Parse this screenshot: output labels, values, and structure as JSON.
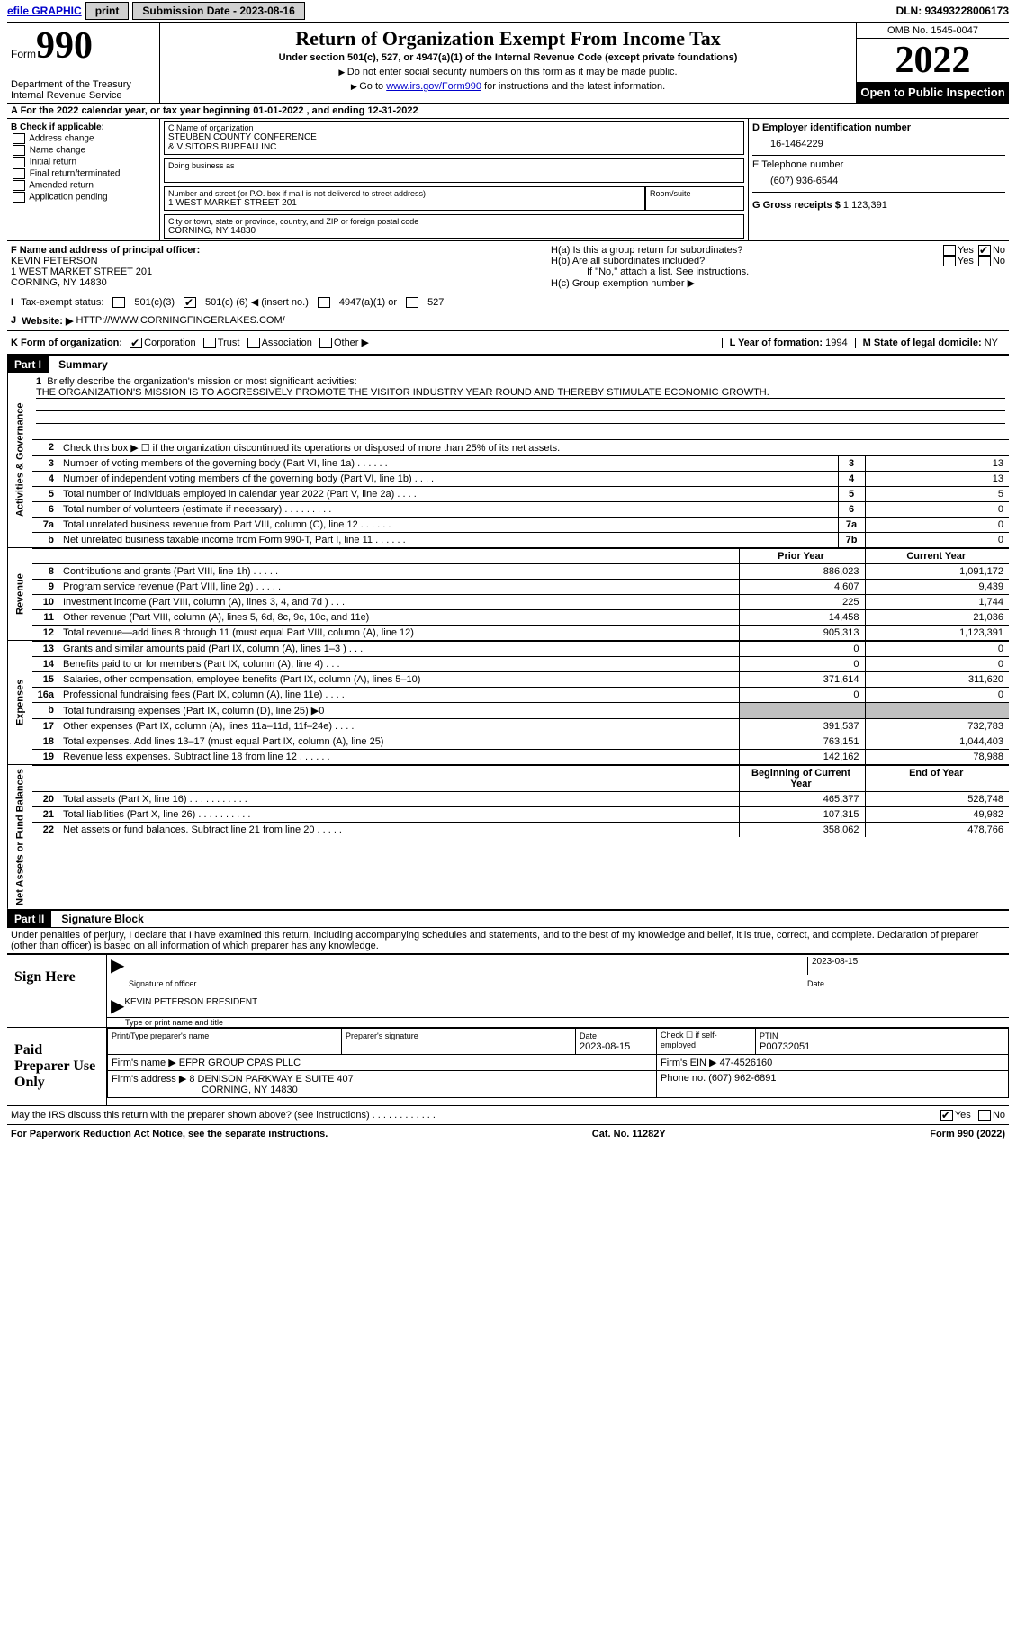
{
  "topbar": {
    "efile": "efile GRAPHIC",
    "print": "print",
    "submission_label": "Submission Date - 2023-08-16",
    "dln_label": "DLN: 93493228006173"
  },
  "header": {
    "form_label": "Form",
    "form_num": "990",
    "dept": "Department of the Treasury Internal Revenue Service",
    "title": "Return of Organization Exempt From Income Tax",
    "subtitle": "Under section 501(c), 527, or 4947(a)(1) of the Internal Revenue Code (except private foundations)",
    "note1": "Do not enter social security numbers on this form as it may be made public.",
    "note2_pre": "Go to ",
    "note2_link": "www.irs.gov/Form990",
    "note2_post": " for instructions and the latest information.",
    "omb": "OMB No. 1545-0047",
    "year": "2022",
    "inspect": "Open to Public Inspection"
  },
  "row_a": {
    "text": "A For the 2022 calendar year, or tax year beginning 01-01-2022    , and ending 12-31-2022"
  },
  "col_b": {
    "label": "B Check if applicable:",
    "opts": [
      "Address change",
      "Name change",
      "Initial return",
      "Final return/terminated",
      "Amended return",
      "Application pending"
    ]
  },
  "box_c": {
    "label": "C Name of organization",
    "line1": "STEUBEN COUNTY CONFERENCE",
    "line2": "& VISITORS BUREAU INC",
    "dba_label": "Doing business as",
    "addr_label": "Number and street (or P.O. box if mail is not delivered to street address)",
    "room_label": "Room/suite",
    "addr": "1 WEST MARKET STREET 201",
    "city_label": "City or town, state or province, country, and ZIP or foreign postal code",
    "city": "CORNING, NY  14830"
  },
  "col_d": {
    "ein_label": "D Employer identification number",
    "ein": "16-1464229",
    "tel_label": "E Telephone number",
    "tel": "(607) 936-6544",
    "gross_label": "G Gross receipts $",
    "gross": "1,123,391"
  },
  "box_f": {
    "label": "F  Name and address of principal officer:",
    "name": "KEVIN PETERSON",
    "addr1": "1 WEST MARKET STREET 201",
    "addr2": "CORNING, NY  14830"
  },
  "box_h": {
    "ha_label": "H(a)  Is this a group return for subordinates?",
    "hb_label": "H(b)  Are all subordinates included?",
    "hb_note": "If \"No,\" attach a list. See instructions.",
    "hc_label": "H(c)  Group exemption number ▶",
    "yes": "Yes",
    "no": "No"
  },
  "row_i": {
    "label": "Tax-exempt status:",
    "o1": "501(c)(3)",
    "o2_pre": "501(c) (",
    "o2_val": "6",
    "o2_post": ") ◀ (insert no.)",
    "o3": "4947(a)(1) or",
    "o4": "527"
  },
  "row_j": {
    "label": "Website: ▶",
    "url": "HTTP://WWW.CORNINGFINGERLAKES.COM/"
  },
  "row_k": {
    "label": "K Form of organization:",
    "opts": [
      "Corporation",
      "Trust",
      "Association",
      "Other ▶"
    ],
    "l_label": "L Year of formation:",
    "l_val": "1994",
    "m_label": "M State of legal domicile:",
    "m_val": "NY"
  },
  "part1": {
    "hdr": "Part I",
    "title": "Summary",
    "q1_label": "Briefly describe the organization's mission or most significant activities:",
    "q1_text": "THE ORGANIZATION'S MISSION IS TO AGGRESSIVELY PROMOTE THE VISITOR INDUSTRY YEAR ROUND AND THEREBY STIMULATE ECONOMIC GROWTH.",
    "q2": "Check this box ▶ ☐  if the organization discontinued its operations or disposed of more than 25% of its net assets.",
    "vert_ag": "Activities & Governance",
    "vert_rev": "Revenue",
    "vert_exp": "Expenses",
    "vert_na": "Net Assets or Fund Balances",
    "prior_hdr": "Prior Year",
    "curr_hdr": "Current Year",
    "begin_hdr": "Beginning of Current Year",
    "end_hdr": "End of Year",
    "lines_ag": [
      {
        "n": "3",
        "desc": "Number of voting members of the governing body (Part VI, line 1a)   .    .    .    .    .    .",
        "nc": "3",
        "v": "13"
      },
      {
        "n": "4",
        "desc": "Number of independent voting members of the governing body (Part VI, line 1b)   .    .    .    .",
        "nc": "4",
        "v": "13"
      },
      {
        "n": "5",
        "desc": "Total number of individuals employed in calendar year 2022 (Part V, line 2a)   .    .    .    .",
        "nc": "5",
        "v": "5"
      },
      {
        "n": "6",
        "desc": "Total number of volunteers (estimate if necessary)    .    .    .    .    .    .    .    .    .",
        "nc": "6",
        "v": "0"
      },
      {
        "n": "7a",
        "desc": "Total unrelated business revenue from Part VIII, column (C), line 12    .    .    .    .    .    .",
        "nc": "7a",
        "v": "0"
      },
      {
        "n": "b",
        "desc": "Net unrelated business taxable income from Form 990-T, Part I, line 11   .    .    .    .    .    .",
        "nc": "7b",
        "v": "0"
      }
    ],
    "lines_rev": [
      {
        "n": "8",
        "desc": "Contributions and grants (Part VIII, line 1h)   .    .    .    .    .",
        "py": "886,023",
        "cy": "1,091,172"
      },
      {
        "n": "9",
        "desc": "Program service revenue (Part VIII, line 2g)   .    .    .    .    .",
        "py": "4,607",
        "cy": "9,439"
      },
      {
        "n": "10",
        "desc": "Investment income (Part VIII, column (A), lines 3, 4, and 7d )    .    .    .",
        "py": "225",
        "cy": "1,744"
      },
      {
        "n": "11",
        "desc": "Other revenue (Part VIII, column (A), lines 5, 6d, 8c, 9c, 10c, and 11e)",
        "py": "14,458",
        "cy": "21,036"
      },
      {
        "n": "12",
        "desc": "Total revenue—add lines 8 through 11 (must equal Part VIII, column (A), line 12)",
        "py": "905,313",
        "cy": "1,123,391"
      }
    ],
    "lines_exp": [
      {
        "n": "13",
        "desc": "Grants and similar amounts paid (Part IX, column (A), lines 1–3 )   .    .    .",
        "py": "0",
        "cy": "0"
      },
      {
        "n": "14",
        "desc": "Benefits paid to or for members (Part IX, column (A), line 4)   .    .    .",
        "py": "0",
        "cy": "0"
      },
      {
        "n": "15",
        "desc": "Salaries, other compensation, employee benefits (Part IX, column (A), lines 5–10)",
        "py": "371,614",
        "cy": "311,620"
      },
      {
        "n": "16a",
        "desc": "Professional fundraising fees (Part IX, column (A), line 11e)   .    .    .    .",
        "py": "0",
        "cy": "0"
      },
      {
        "n": "b",
        "desc": "Total fundraising expenses (Part IX, column (D), line 25) ▶0",
        "py": "",
        "cy": "",
        "shade": true
      },
      {
        "n": "17",
        "desc": "Other expenses (Part IX, column (A), lines 11a–11d, 11f–24e)   .    .    .    .",
        "py": "391,537",
        "cy": "732,783"
      },
      {
        "n": "18",
        "desc": "Total expenses. Add lines 13–17 (must equal Part IX, column (A), line 25)",
        "py": "763,151",
        "cy": "1,044,403"
      },
      {
        "n": "19",
        "desc": "Revenue less expenses. Subtract line 18 from line 12   .    .    .    .    .    .",
        "py": "142,162",
        "cy": "78,988"
      }
    ],
    "lines_na": [
      {
        "n": "20",
        "desc": "Total assets (Part X, line 16)   .    .    .    .    .    .    .    .    .    .    .",
        "py": "465,377",
        "cy": "528,748"
      },
      {
        "n": "21",
        "desc": "Total liabilities (Part X, line 26)   .    .    .    .    .    .    .    .    .    .",
        "py": "107,315",
        "cy": "49,982"
      },
      {
        "n": "22",
        "desc": "Net assets or fund balances. Subtract line 21 from line 20   .    .    .    .    .",
        "py": "358,062",
        "cy": "478,766"
      }
    ]
  },
  "part2": {
    "hdr": "Part II",
    "title": "Signature Block",
    "penalty": "Under penalties of perjury, I declare that I have examined this return, including accompanying schedules and statements, and to the best of my knowledge and belief, it is true, correct, and complete. Declaration of preparer (other than officer) is based on all information of which preparer has any knowledge.",
    "sign_here": "Sign Here",
    "sig_officer": "Signature of officer",
    "sig_date": "2023-08-15",
    "date_lbl": "Date",
    "name_title": "KEVIN PETERSON  PRESIDENT",
    "name_title_lbl": "Type or print name and title",
    "paid": "Paid Preparer Use Only",
    "prep_name_lbl": "Print/Type preparer's name",
    "prep_sig_lbl": "Preparer's signature",
    "prep_date_lbl": "Date",
    "prep_date": "2023-08-15",
    "check_lbl": "Check ☐ if self-employed",
    "ptin_lbl": "PTIN",
    "ptin": "P00732051",
    "firm_name_lbl": "Firm's name    ▶",
    "firm_name": "EFPR GROUP CPAS PLLC",
    "firm_ein_lbl": "Firm's EIN ▶",
    "firm_ein": "47-4526160",
    "firm_addr_lbl": "Firm's address ▶",
    "firm_addr1": "8 DENISON PARKWAY E SUITE 407",
    "firm_addr2": "CORNING, NY  14830",
    "firm_phone_lbl": "Phone no.",
    "firm_phone": "(607) 962-6891",
    "may_irs": "May the IRS discuss this return with the preparer shown above? (see instructions)   .    .    .    .    .    .    .    .    .    .    .    .",
    "yes": "Yes",
    "no": "No"
  },
  "footer": {
    "left": "For Paperwork Reduction Act Notice, see the separate instructions.",
    "mid": "Cat. No. 11282Y",
    "right": "Form 990 (2022)"
  }
}
